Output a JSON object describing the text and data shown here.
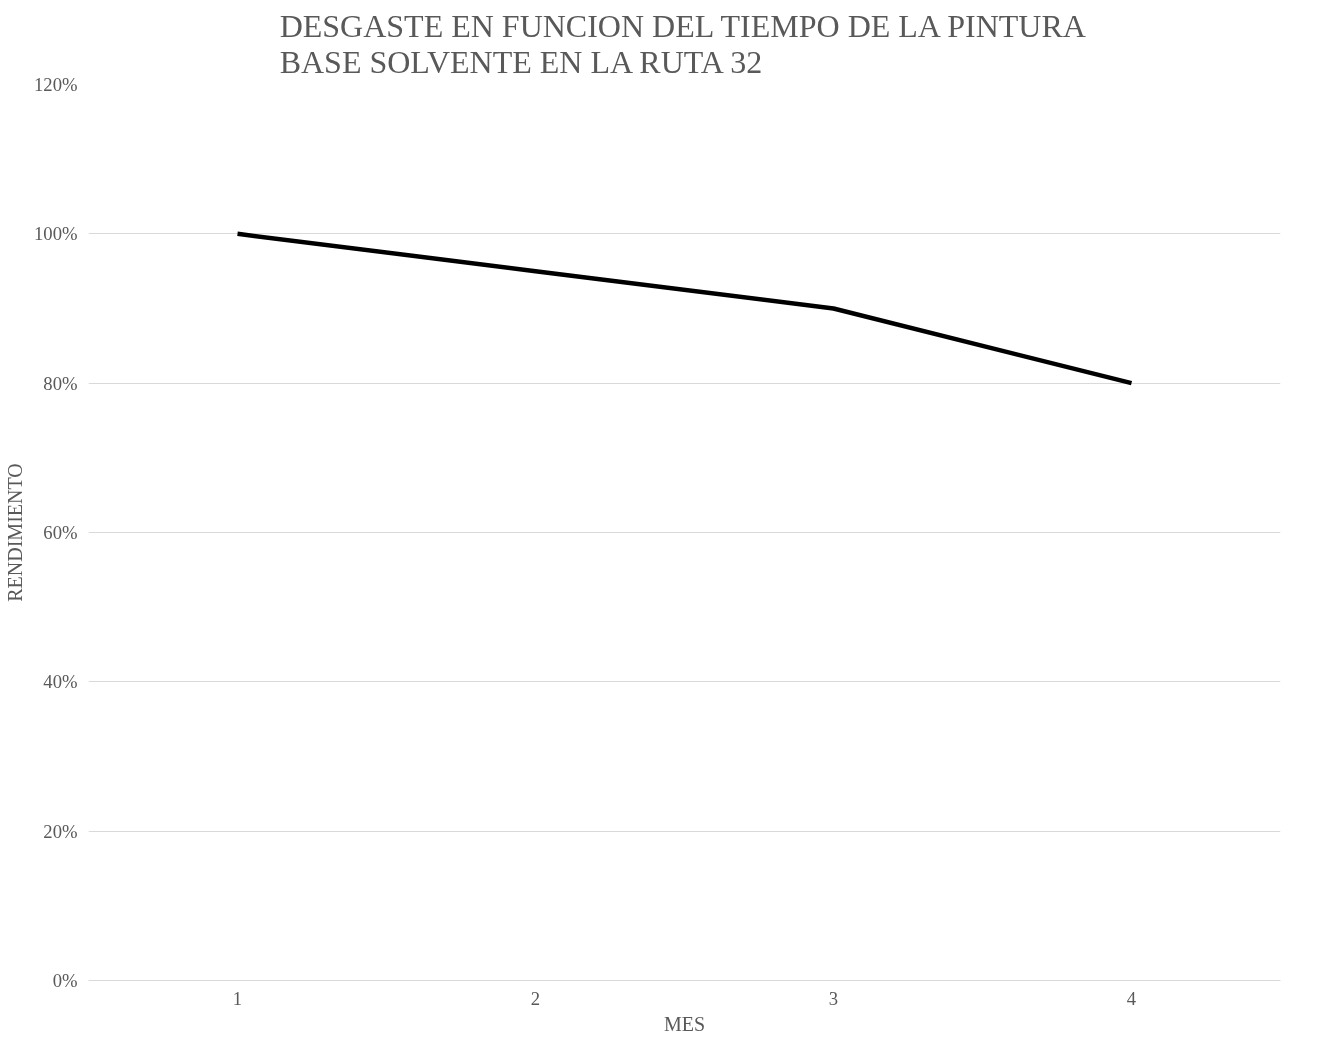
{
  "chart_data": {
    "type": "line",
    "title": "DESGASTE EN FUNCION DEL TIEMPO DE LA PINTURA\nBASE SOLVENTE EN LA RUTA 32",
    "xlabel": "MES",
    "ylabel": "RENDIMIENTO",
    "categories": [
      "1",
      "2",
      "3",
      "4"
    ],
    "series": [
      {
        "color": "#000000",
        "values": [
          100,
          95,
          90,
          80
        ]
      }
    ],
    "ylim": [
      0,
      120
    ],
    "yticks": [
      {
        "value": 0,
        "label": "0%"
      },
      {
        "value": 20,
        "label": "20%"
      },
      {
        "value": 40,
        "label": "40%"
      },
      {
        "value": 60,
        "label": "60%"
      },
      {
        "value": 80,
        "label": "80%"
      },
      {
        "value": 100,
        "label": "100%"
      },
      {
        "value": 120,
        "label": "120%"
      }
    ],
    "grid": "y",
    "marker": "none",
    "line_style": "solid"
  }
}
